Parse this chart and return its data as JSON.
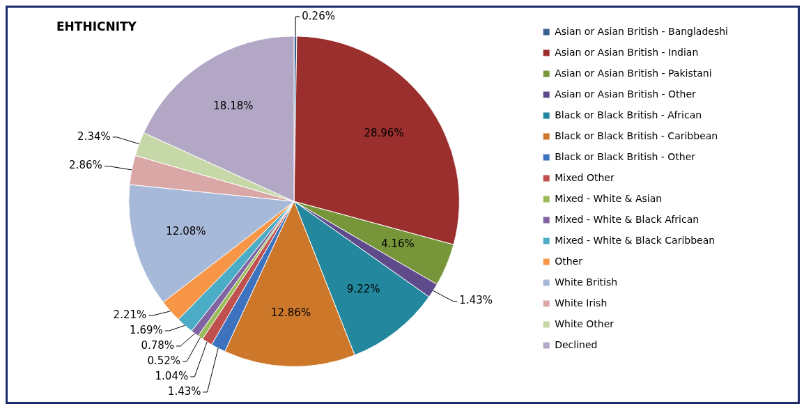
{
  "chart_data": {
    "type": "pie",
    "title": "EHTHICNITY",
    "legend": "right",
    "value_labels": [
      "0.26%",
      "28.96%",
      "4.16%",
      "1.43%",
      "9.22%",
      "12.86%",
      "1.43%",
      "1.04%",
      "0.52%",
      "0.78%",
      "1.69%",
      "2.21%",
      "12.08%",
      "2.86%",
      "2.34%",
      "18.18%"
    ],
    "categories": [
      "Asian or Asian British - Bangladeshi",
      "Asian or Asian British - Indian",
      "Asian or Asian British - Pakistani",
      "Asian or Asian British - Other",
      "Black or Black British - African",
      "Black or Black British - Caribbean",
      "Black or Black British - Other",
      "Mixed Other",
      "Mixed - White & Asian",
      "Mixed - White & Black African",
      "Mixed - White & Black Caribbean",
      "Other",
      "White British",
      "White Irish",
      "White Other",
      "Declined"
    ],
    "values": [
      0.26,
      28.96,
      4.16,
      1.43,
      9.22,
      12.86,
      1.43,
      1.04,
      0.52,
      0.78,
      1.69,
      2.21,
      12.08,
      2.86,
      2.34,
      18.18
    ],
    "colors": [
      "#366092",
      "#9a2f2e",
      "#77963a",
      "#5f4a8b",
      "#23889e",
      "#cc7729",
      "#3d72bf",
      "#c0504d",
      "#9bbb59",
      "#8064a2",
      "#4bacc6",
      "#f79646",
      "#a7b9d8",
      "#d9a7a6",
      "#c7d8a8",
      "#b3a7c6"
    ]
  }
}
